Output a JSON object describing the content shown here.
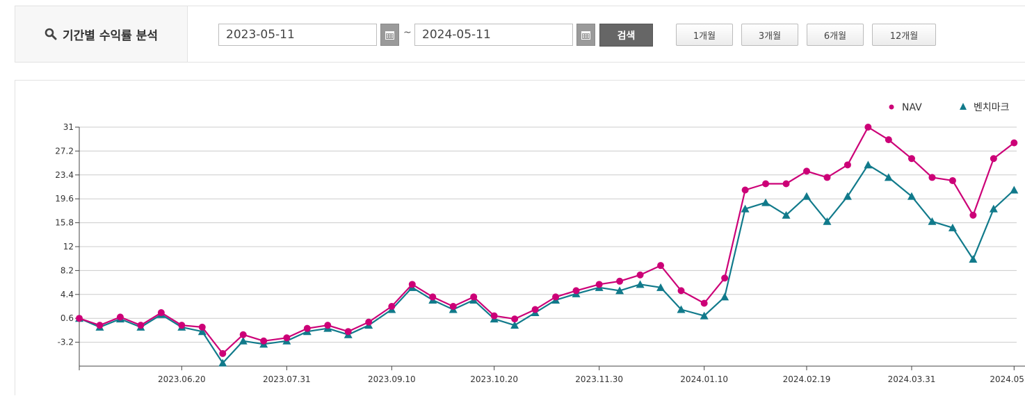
{
  "header": {
    "title": "기간별 수익률 분석",
    "start_date": "2023-05-11",
    "end_date": "2024-05-11",
    "separator": "~",
    "search_label": "검색",
    "periods": [
      "1개월",
      "3개월",
      "6개월",
      "12개월"
    ]
  },
  "colors": {
    "nav": "#cc0077",
    "benchmark": "#117a8b",
    "grid": "#cccccc"
  },
  "chart_data": {
    "type": "line",
    "title": "",
    "xlabel": "",
    "ylabel": "",
    "ylim": [
      -7,
      31
    ],
    "yticks": [
      31,
      27.2,
      23.4,
      19.6,
      15.8,
      12,
      8.2,
      4.4,
      0.6,
      -3.2
    ],
    "xticks": [
      "2023.06.20",
      "2023.07.31",
      "2023.09.10",
      "2023.10.20",
      "2023.11.30",
      "2024.01.10",
      "2024.02.19",
      "2024.03.31",
      "2024.05"
    ],
    "grid": true,
    "legend": "top-right",
    "x": [
      "2023-05-11",
      "2023-05-19",
      "2023-05-27",
      "2023-06-04",
      "2023-06-12",
      "2023-06-20",
      "2023-06-28",
      "2023-07-06",
      "2023-07-14",
      "2023-07-22",
      "2023-07-31",
      "2023-08-08",
      "2023-08-16",
      "2023-08-24",
      "2023-09-01",
      "2023-09-10",
      "2023-09-18",
      "2023-09-26",
      "2023-10-04",
      "2023-10-12",
      "2023-10-20",
      "2023-10-28",
      "2023-11-05",
      "2023-11-13",
      "2023-11-21",
      "2023-11-30",
      "2023-12-08",
      "2023-12-16",
      "2023-12-24",
      "2024-01-01",
      "2024-01-10",
      "2024-01-18",
      "2024-01-26",
      "2024-02-03",
      "2024-02-11",
      "2024-02-19",
      "2024-02-27",
      "2024-03-06",
      "2024-03-14",
      "2024-03-22",
      "2024-03-31",
      "2024-04-08",
      "2024-04-16",
      "2024-04-24",
      "2024-05-02",
      "2024-05-10"
    ],
    "series": [
      {
        "name": "NAV",
        "values": [
          0.6,
          -0.5,
          0.8,
          -0.5,
          1.5,
          -0.5,
          -0.8,
          -5,
          -2,
          -3,
          -2.5,
          -1,
          -0.5,
          -1.5,
          0,
          2.5,
          6,
          4,
          2.5,
          4,
          1,
          0.5,
          2,
          4,
          5,
          6,
          6.5,
          7.5,
          9,
          5,
          3,
          7,
          21,
          22,
          22,
          24,
          23,
          25,
          31,
          29,
          26,
          23,
          22.5,
          17,
          26,
          28.5
        ]
      },
      {
        "name": "벤치마크",
        "values": [
          0.6,
          -0.8,
          0.5,
          -0.8,
          1.2,
          -0.8,
          -1.5,
          -6.5,
          -3,
          -3.5,
          -3,
          -1.5,
          -1,
          -2,
          -0.5,
          2,
          5.5,
          3.5,
          2,
          3.5,
          0.5,
          -0.5,
          1.5,
          3.5,
          4.5,
          5.5,
          5,
          6,
          5.5,
          2,
          1,
          4,
          18,
          19,
          17,
          20,
          16,
          20,
          25,
          23,
          20,
          16,
          15,
          10,
          18,
          21
        ]
      }
    ]
  }
}
